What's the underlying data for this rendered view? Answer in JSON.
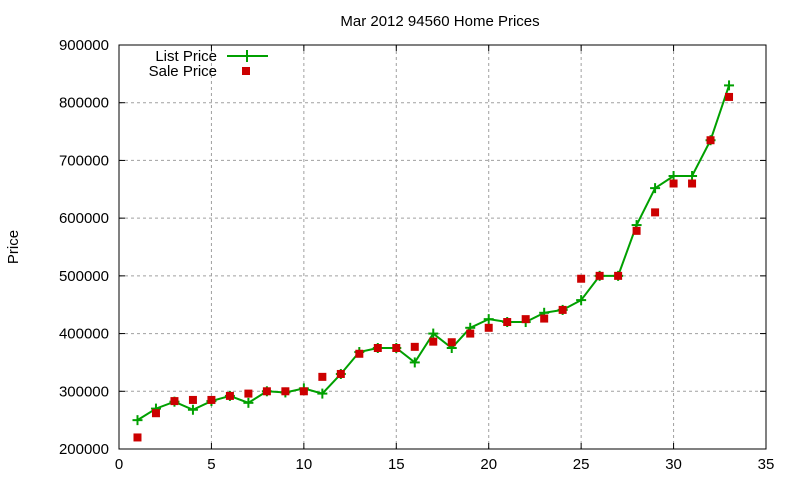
{
  "chart_data": {
    "type": "line",
    "title": "Mar 2012 94560 Home Prices",
    "xlabel": "",
    "ylabel": "Price",
    "xlim": [
      0,
      35
    ],
    "ylim": [
      200000,
      900000
    ],
    "xticks": [
      0,
      5,
      10,
      15,
      20,
      25,
      30,
      35
    ],
    "yticks": [
      200000,
      300000,
      400000,
      500000,
      600000,
      700000,
      800000,
      900000
    ],
    "grid": true,
    "legend_position": "top-left",
    "x": [
      1,
      2,
      3,
      4,
      5,
      6,
      7,
      8,
      9,
      10,
      11,
      12,
      13,
      14,
      15,
      16,
      17,
      18,
      19,
      20,
      21,
      22,
      23,
      24,
      25,
      26,
      27,
      28,
      29,
      30,
      31,
      32,
      33
    ],
    "series": [
      {
        "name": "List Price",
        "style": "linespoints",
        "marker": "plus",
        "color": "#00a000",
        "values": [
          250000,
          270000,
          282000,
          268000,
          283000,
          292000,
          280000,
          300000,
          298000,
          305000,
          296000,
          330000,
          368000,
          375000,
          375000,
          350000,
          400000,
          375000,
          410000,
          425000,
          420000,
          420000,
          436000,
          441000,
          458000,
          500000,
          500000,
          588000,
          652000,
          673000,
          673000,
          735000,
          830000
        ]
      },
      {
        "name": "Sale Price",
        "style": "points",
        "marker": "square",
        "color": "#cc0000",
        "values": [
          220000,
          262000,
          283000,
          285000,
          285000,
          292000,
          296000,
          300000,
          300000,
          300000,
          325000,
          330000,
          365000,
          375000,
          375000,
          377000,
          386000,
          385000,
          400000,
          410000,
          420000,
          425000,
          426000,
          441000,
          495000,
          500000,
          500000,
          578000,
          610000,
          660000,
          660000,
          735000,
          810000
        ]
      }
    ]
  }
}
